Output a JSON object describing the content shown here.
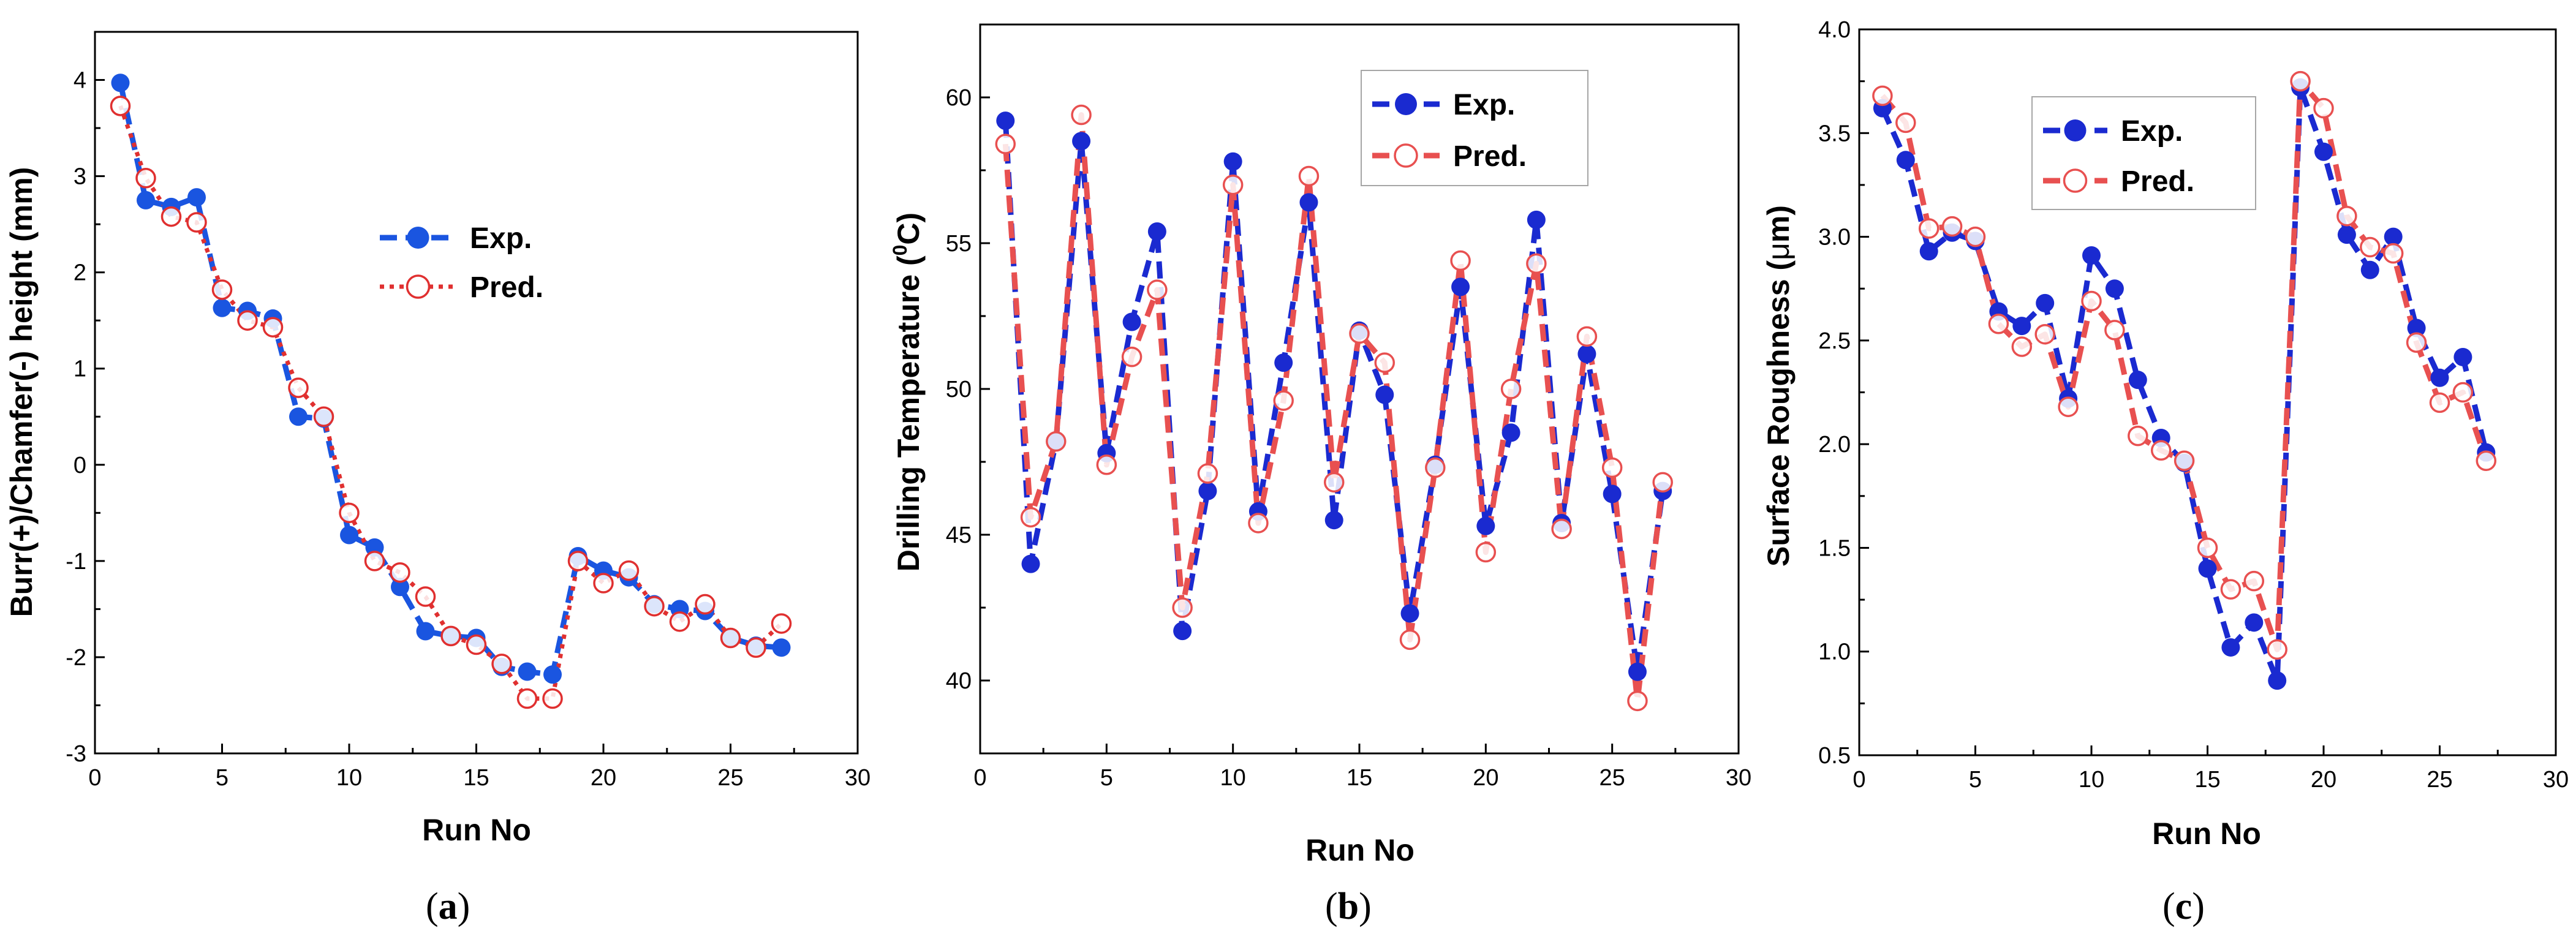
{
  "chart_data": [
    {
      "type": "line",
      "panel": "a",
      "caption_open": "(",
      "caption_letter": "a",
      "caption_close": ")",
      "xlabel": "Run No",
      "ylabel": "Burr(+)/Chamfer(-) height (mm)",
      "xlim": [
        0,
        30
      ],
      "ylim": [
        -3,
        4.5
      ],
      "xticks": [
        0,
        5,
        10,
        15,
        20,
        25,
        30
      ],
      "yticks": [
        -3,
        -2,
        -1,
        0,
        1,
        2,
        3,
        4
      ],
      "legend_position": "center-right",
      "x": [
        1,
        2,
        3,
        4,
        5,
        6,
        7,
        8,
        9,
        10,
        11,
        12,
        13,
        14,
        15,
        16,
        17,
        18,
        19,
        20,
        21,
        22,
        23,
        24,
        25,
        26,
        27
      ],
      "series": [
        {
          "name": "Exp.",
          "color": "#1a55e0",
          "style": "dashed-filled",
          "values": [
            3.97,
            2.75,
            2.68,
            2.78,
            1.63,
            1.6,
            1.52,
            0.5,
            0.48,
            -0.73,
            -0.86,
            -1.27,
            -1.73,
            -1.78,
            -1.8,
            -2.1,
            -2.15,
            -2.18,
            -0.95,
            -1.1,
            -1.17,
            -1.45,
            -1.5,
            -1.52,
            -1.8,
            -1.88,
            -1.9
          ]
        },
        {
          "name": "Pred.",
          "color": "#e03030",
          "style": "dotted-open",
          "values": [
            3.73,
            2.98,
            2.58,
            2.52,
            1.82,
            1.5,
            1.43,
            0.8,
            0.5,
            -0.5,
            -1.0,
            -1.12,
            -1.37,
            -1.78,
            -1.87,
            -2.07,
            -2.43,
            -2.43,
            -1.0,
            -1.23,
            -1.1,
            -1.47,
            -1.63,
            -1.45,
            -1.8,
            -1.9,
            -1.65
          ]
        }
      ]
    },
    {
      "type": "line",
      "panel": "b",
      "caption_open": "(",
      "caption_letter": "b",
      "caption_close": ")",
      "xlabel": "Run No",
      "ylabel_prefix": "Drilling Temperature (",
      "ylabel_sup": "0",
      "ylabel_suffix": "C)",
      "xlim": [
        0,
        30
      ],
      "ylim": [
        37.5,
        62.5
      ],
      "xticks": [
        0,
        5,
        10,
        15,
        20,
        25,
        30
      ],
      "yticks": [
        40,
        45,
        50,
        55,
        60
      ],
      "legend_position": "top-right",
      "x": [
        1,
        2,
        3,
        4,
        5,
        6,
        7,
        8,
        9,
        10,
        11,
        12,
        13,
        14,
        15,
        16,
        17,
        18,
        19,
        20,
        21,
        22,
        23,
        24,
        25,
        26,
        27
      ],
      "series": [
        {
          "name": "Exp.",
          "color": "#1a2ad0",
          "style": "dashed-filled",
          "values": [
            59.2,
            44.0,
            48.2,
            58.5,
            47.8,
            52.3,
            55.4,
            41.7,
            46.5,
            57.8,
            45.8,
            50.9,
            56.4,
            45.5,
            52.0,
            49.8,
            42.3,
            47.4,
            53.5,
            45.3,
            48.5,
            55.8,
            45.4,
            51.2,
            46.4,
            40.3,
            46.5
          ]
        },
        {
          "name": "Pred.",
          "color": "#e85050",
          "style": "dashed-open",
          "values": [
            58.4,
            45.6,
            48.2,
            59.4,
            47.4,
            51.1,
            53.4,
            42.5,
            47.1,
            57.0,
            45.4,
            49.6,
            57.3,
            46.8,
            51.9,
            50.9,
            41.4,
            47.3,
            54.4,
            44.4,
            50.0,
            54.3,
            45.2,
            51.8,
            47.3,
            39.3,
            46.8
          ]
        }
      ]
    },
    {
      "type": "line",
      "panel": "c",
      "caption_open": "(",
      "caption_letter": "c",
      "caption_close": ")",
      "xlabel": "Run No",
      "ylabel_prefix": "Surface Roughness (",
      "ylabel_mu": "μ",
      "ylabel_suffix": "m)",
      "xlim": [
        0,
        30
      ],
      "ylim": [
        0.5,
        4.0
      ],
      "xticks": [
        0,
        5,
        10,
        15,
        20,
        25,
        30
      ],
      "yticks": [
        0.5,
        1.0,
        1.5,
        2.0,
        2.5,
        3.0,
        3.5,
        4.0
      ],
      "ytick_labels": [
        "0.5",
        "1.0",
        "1.5",
        "2.0",
        "2.5",
        "3.0",
        "3.5",
        "4.0"
      ],
      "legend_position": "top-center",
      "x": [
        1,
        2,
        3,
        4,
        5,
        6,
        7,
        8,
        9,
        10,
        11,
        12,
        13,
        14,
        15,
        16,
        17,
        18,
        19,
        20,
        21,
        22,
        23,
        24,
        25,
        26,
        27
      ],
      "series": [
        {
          "name": "Exp.",
          "color": "#1a2ad0",
          "style": "dashed-filled",
          "values": [
            3.62,
            3.37,
            2.93,
            3.02,
            2.98,
            2.64,
            2.57,
            2.68,
            2.22,
            2.91,
            2.75,
            2.31,
            2.03,
            1.91,
            1.4,
            1.02,
            1.14,
            0.86,
            3.72,
            3.41,
            3.01,
            2.84,
            3.0,
            2.56,
            2.32,
            2.42,
            1.96
          ]
        },
        {
          "name": "Pred.",
          "color": "#e85050",
          "style": "dashed-open",
          "values": [
            3.68,
            3.55,
            3.04,
            3.05,
            3.0,
            2.58,
            2.47,
            2.53,
            2.18,
            2.69,
            2.55,
            2.04,
            1.97,
            1.92,
            1.5,
            1.3,
            1.34,
            1.01,
            3.75,
            3.62,
            3.1,
            2.95,
            2.92,
            2.49,
            2.2,
            2.25,
            1.92
          ]
        }
      ]
    }
  ]
}
